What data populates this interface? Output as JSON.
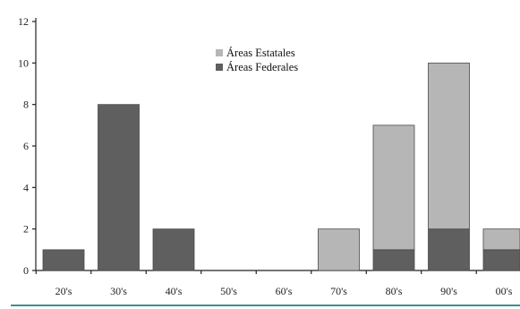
{
  "chart_data": {
    "type": "bar",
    "stacked": true,
    "categories": [
      "20's",
      "30's",
      "40's",
      "50's",
      "60's",
      "70's",
      "80's",
      "90's",
      "00's"
    ],
    "series": [
      {
        "name": "Áreas Federales",
        "color": "#5f5f5f",
        "values": [
          1,
          8,
          2,
          0,
          0,
          0,
          1,
          2,
          1
        ]
      },
      {
        "name": "Áreas Estatales",
        "color": "#b6b6b6",
        "values": [
          0,
          0,
          0,
          0,
          0,
          2,
          6,
          8,
          1
        ]
      }
    ],
    "y_ticks": [
      0,
      2,
      4,
      6,
      8,
      10,
      12
    ],
    "ylim": [
      0,
      12
    ],
    "legend_position": "top-center",
    "grid": false,
    "title": "",
    "xlabel": "",
    "ylabel": ""
  },
  "colors": {
    "bar_outline": "#4a4a4a",
    "bottom_rule": "#3f8f8f"
  }
}
